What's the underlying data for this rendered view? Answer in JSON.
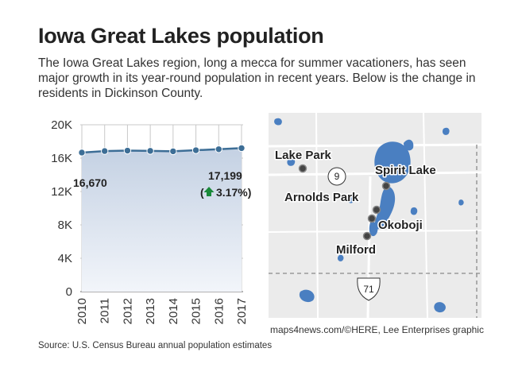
{
  "header": {
    "title": "Iowa Great Lakes population",
    "subtitle": "The Iowa Great Lakes region, long a mecca for summer vacationers, has seen major growth in its year-round population in recent years. Below is the change in residents in Dickinson County."
  },
  "chart_data": {
    "type": "area",
    "title": "Iowa Great Lakes population",
    "categories": [
      "2010",
      "2011",
      "2012",
      "2013",
      "2014",
      "2015",
      "2016",
      "2017"
    ],
    "series": [
      {
        "name": "",
        "values": [
          16670,
          16850,
          16900,
          16870,
          16820,
          16950,
          17070,
          17199
        ]
      }
    ],
    "ylim": [
      0,
      20000
    ],
    "yticks": [
      0,
      4000,
      8000,
      12000,
      16000,
      20000
    ],
    "ytick_labels": [
      "0",
      "4K",
      "8K",
      "12K",
      "16K",
      "20K"
    ],
    "xlabel": "",
    "ylabel": "",
    "grid": true,
    "annotations": {
      "start_value": "16,670",
      "end_value": "17,199",
      "change_open": "(",
      "change_pct": "3.17%)"
    },
    "colors": {
      "line": "#3d6e96",
      "fill_top": "#c4d1e3",
      "fill_bottom": "#f2f5fa",
      "grid": "#c8c8c8",
      "arrow": "#1b8a3a"
    }
  },
  "map": {
    "cities": [
      {
        "name": "Lake Park",
        "key": "lake-park"
      },
      {
        "name": "Spirit Lake",
        "key": "spirit-lake"
      },
      {
        "name": "Arnolds Park",
        "key": "arnolds-park"
      },
      {
        "name": "Okoboji",
        "key": "okoboji"
      },
      {
        "name": "Milford",
        "key": "milford"
      }
    ],
    "roads": {
      "state": "9",
      "us": "71"
    },
    "colors": {
      "land": "#ebebeb",
      "water": "#4a7fc1",
      "road": "#ffffff"
    }
  },
  "footer": {
    "map_credit": "maps4news.com/©HERE, Lee Enterprises graphic",
    "source": "Source: U.S. Census Bureau annual population estimates"
  }
}
